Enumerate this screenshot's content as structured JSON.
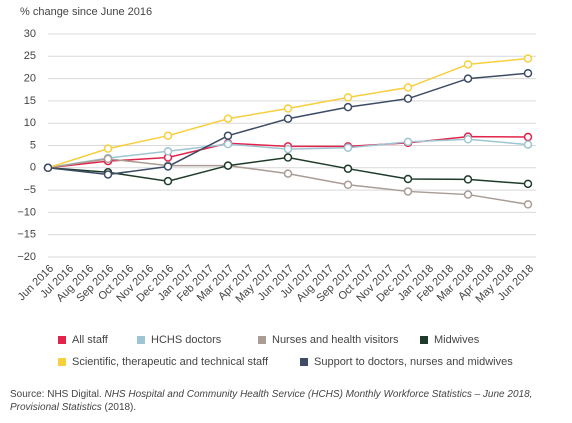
{
  "chart_data": {
    "type": "line",
    "y_axis_label": "% change since June 2016",
    "categories": [
      "Jun 2016",
      "Jul 2016",
      "Aug 2016",
      "Sep 2016",
      "Oct 2016",
      "Nov 2016",
      "Dec 2016",
      "Jan 2017",
      "Feb 2017",
      "Mar 2017",
      "Apr 2017",
      "May 2017",
      "Jun 2017",
      "Jul 2017",
      "Aug 2017",
      "Sep 2017",
      "Oct 2017",
      "Nov 2017",
      "Dec 2017",
      "Jan 2018",
      "Feb 2018",
      "Mar 2018",
      "Apr 2018",
      "May 2018",
      "Jun 2018"
    ],
    "x": [
      "Jun 2016",
      "Sep 2016",
      "Dec 2016",
      "Mar 2017",
      "Jun 2017",
      "Sep 2017",
      "Dec 2017",
      "Mar 2018",
      "Jun 2018"
    ],
    "series": [
      {
        "name": "All staff",
        "color": "#e2244c",
        "values": [
          0,
          1.5,
          2.3,
          5.5,
          4.8,
          4.8,
          5.6,
          7.0,
          6.9
        ]
      },
      {
        "name": "HCHS doctors",
        "color": "#9fc4d3",
        "values": [
          0,
          2.2,
          3.7,
          5.3,
          4.2,
          4.5,
          5.8,
          6.4,
          5.2
        ]
      },
      {
        "name": "Nurses and health visitors",
        "color": "#a99c95",
        "values": [
          0,
          2.0,
          0.5,
          0.5,
          -1.3,
          -3.8,
          -5.3,
          -6.0,
          -8.2
        ]
      },
      {
        "name": "Midwives",
        "color": "#1e3b2a",
        "values": [
          0,
          -1.0,
          -3.0,
          0.5,
          2.3,
          -0.2,
          -2.5,
          -2.6,
          -3.6
        ]
      },
      {
        "name": "Scientific, therapeutic and technical staff",
        "color": "#f7cf3c",
        "values": [
          0,
          4.3,
          7.2,
          11.0,
          13.3,
          15.8,
          18.0,
          23.2,
          24.5
        ]
      },
      {
        "name": "Support to doctors, nurses and midwives",
        "color": "#3d4b66",
        "values": [
          0,
          -1.5,
          0.3,
          7.2,
          11.0,
          13.6,
          15.5,
          20.0,
          21.2
        ]
      }
    ],
    "ylim": [
      -20,
      30
    ],
    "yticks": [
      30,
      25,
      20,
      15,
      10,
      5,
      0,
      {
        "value": -5,
        "label": "−5"
      },
      {
        "value": -10,
        "label": "−10"
      },
      {
        "value": -15,
        "label": "−15"
      },
      {
        "value": -20,
        "label": "−20"
      }
    ],
    "grid": true
  },
  "footer": {
    "source": "Source: NHS Digital.",
    "publication": "NHS Hospital and Community Health Service (HCHS) Monthly Workforce Statistics – June 2018, Provisional Statistics",
    "year": "(2018)."
  }
}
